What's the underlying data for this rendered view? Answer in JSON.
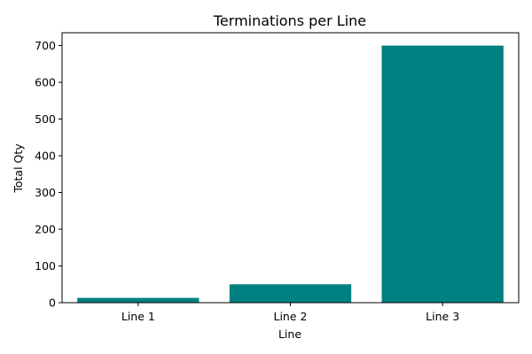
{
  "chart_data": {
    "type": "bar",
    "title": "Terminations per Line",
    "xlabel": "Line",
    "ylabel": "Total Qty",
    "categories": [
      "Line 1",
      "Line 2",
      "Line 3"
    ],
    "values": [
      13,
      50,
      700
    ],
    "ylim": [
      0,
      735
    ],
    "yticks": [
      0,
      100,
      200,
      300,
      400,
      500,
      600,
      700
    ],
    "bar_color": "#008080",
    "grid": false,
    "legend": "none"
  }
}
